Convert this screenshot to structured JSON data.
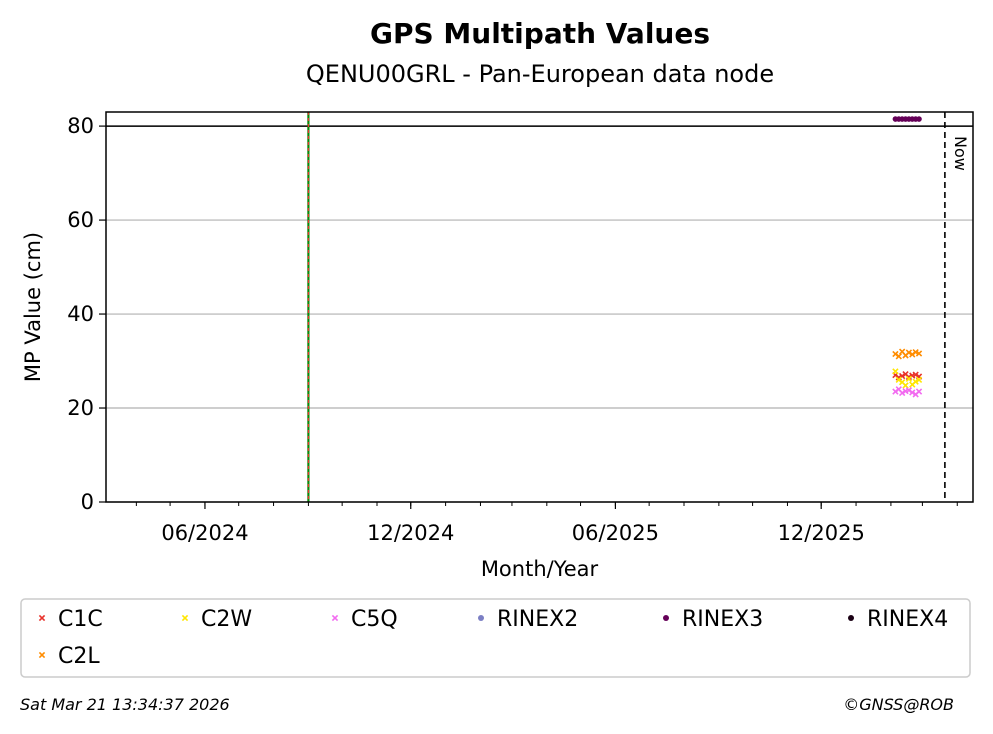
{
  "chart_data": {
    "type": "scatter",
    "title": "GPS Multipath Values",
    "subtitle": "QENU00GRL - Pan-European data node",
    "xlabel": "Month/Year",
    "ylabel": "MP Value (cm)",
    "xlim": [
      "2024-03-05",
      "2026-04-15"
    ],
    "ylim": [
      0,
      83
    ],
    "x_ticks": [
      {
        "date": "2024-06-01",
        "label": "06/2024"
      },
      {
        "date": "2024-12-01",
        "label": "12/2024"
      },
      {
        "date": "2025-06-01",
        "label": "06/2025"
      },
      {
        "date": "2025-12-01",
        "label": "12/2025"
      }
    ],
    "y_ticks": [
      0,
      20,
      40,
      60,
      80
    ],
    "grid": "horizontal",
    "reference_line": 80,
    "event_line_date": "2024-09-01",
    "now_line": {
      "date": "2026-03-21",
      "label": "Now"
    },
    "series": [
      {
        "name": "C1C",
        "color": "#e8322b",
        "marker": "x",
        "x": [
          "2026-02-05",
          "2026-02-08",
          "2026-02-11",
          "2026-02-14",
          "2026-02-17",
          "2026-02-20",
          "2026-02-23",
          "2026-02-26"
        ],
        "y": [
          27.0,
          26.5,
          26.8,
          27.2,
          26.6,
          26.9,
          27.1,
          26.7
        ]
      },
      {
        "name": "C2W",
        "color": "#ffe600",
        "marker": "x",
        "x": [
          "2026-02-05",
          "2026-02-08",
          "2026-02-11",
          "2026-02-14",
          "2026-02-17",
          "2026-02-20",
          "2026-02-23",
          "2026-02-26"
        ],
        "y": [
          27.8,
          26.0,
          25.5,
          24.8,
          26.2,
          25.0,
          25.6,
          26.0
        ]
      },
      {
        "name": "C5Q",
        "color": "#f26bf0",
        "marker": "x",
        "x": [
          "2026-02-05",
          "2026-02-08",
          "2026-02-11",
          "2026-02-14",
          "2026-02-17",
          "2026-02-20",
          "2026-02-23",
          "2026-02-26"
        ],
        "y": [
          23.5,
          24.0,
          23.2,
          23.6,
          23.8,
          23.3,
          22.9,
          23.5
        ]
      },
      {
        "name": "RINEX2",
        "color": "#7b7fc4",
        "marker": "o",
        "x": [],
        "y": []
      },
      {
        "name": "RINEX3",
        "color": "#650058",
        "marker": "o",
        "x": [
          "2026-02-05",
          "2026-02-08",
          "2026-02-11",
          "2026-02-14",
          "2026-02-17",
          "2026-02-20",
          "2026-02-23",
          "2026-02-26"
        ],
        "y": [
          81.5,
          81.5,
          81.5,
          81.5,
          81.5,
          81.5,
          81.5,
          81.5
        ]
      },
      {
        "name": "RINEX4",
        "color": "#1a0014",
        "marker": "o",
        "x": [],
        "y": []
      },
      {
        "name": "C2L",
        "color": "#ff8c00",
        "marker": "x",
        "x": [
          "2026-02-05",
          "2026-02-08",
          "2026-02-11",
          "2026-02-14",
          "2026-02-17",
          "2026-02-20",
          "2026-02-23",
          "2026-02-26"
        ],
        "y": [
          31.5,
          31.0,
          32.0,
          31.2,
          31.8,
          31.4,
          31.9,
          31.6
        ]
      }
    ],
    "legend_placement": "bottom"
  },
  "footer": {
    "timestamp": "Sat Mar 21 13:34:37 2026",
    "copyright": "©GNSS@ROB"
  }
}
